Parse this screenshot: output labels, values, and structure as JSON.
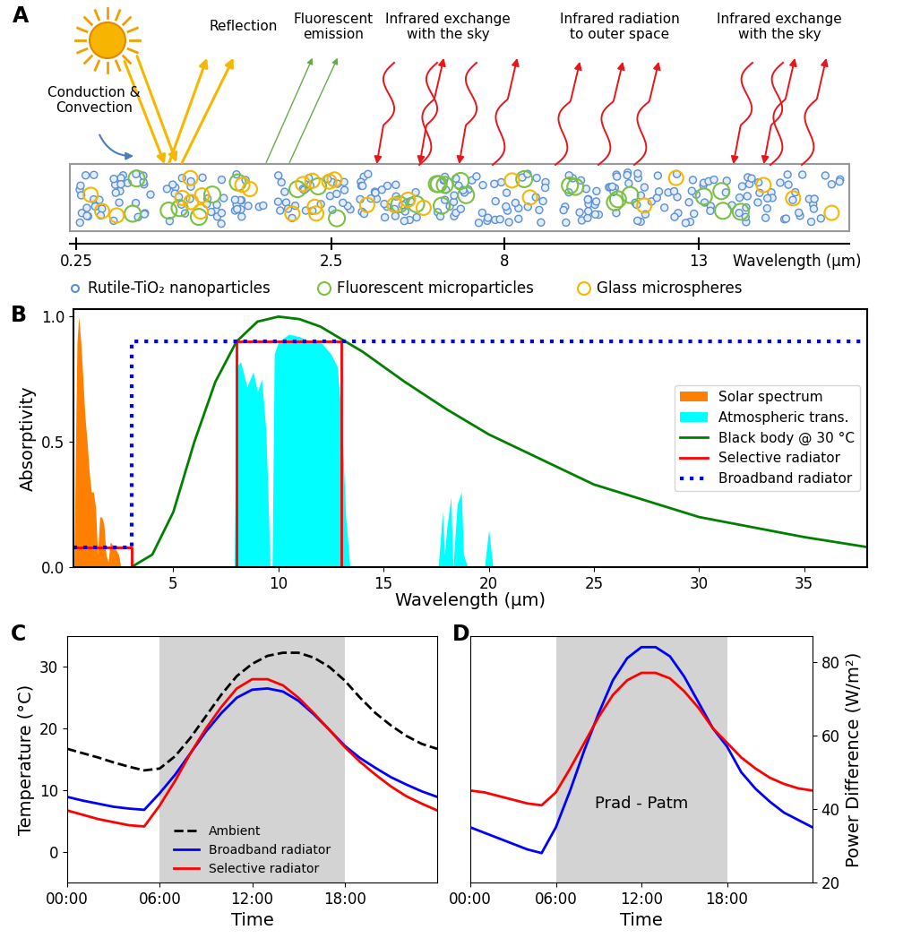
{
  "diagram": {
    "panel": "A",
    "labels": {
      "reflection": "Reflection",
      "fluorescent": "Fluorescent\nemission",
      "exchange_left": "Infrared exchange\nwith the sky",
      "outer_space": "Infrared radiation\nto outer space",
      "exchange_right": "Infrared exchange\nwith the sky",
      "conduction": "Conduction &\nConvection"
    },
    "axis": {
      "ticks": [
        "0.25",
        "2.5",
        "8",
        "13"
      ],
      "label": "Wavelength (µm)"
    },
    "key_items": [
      {
        "label": "Rutile-TiO₂ nanoparticles",
        "color": "#5b8fd6"
      },
      {
        "label": "Fluorescent microparticles",
        "color": "#7ac143"
      },
      {
        "label": "Glass microspheres",
        "color": "#f5b800"
      }
    ]
  },
  "chart_data": [
    {
      "panel": "B",
      "type": "line",
      "xlabel": "Wavelength (μm)",
      "ylabel": "Absorptivity",
      "xlim": [
        0.25,
        38
      ],
      "ylim": [
        0,
        1.03
      ],
      "xticks": [
        5,
        10,
        15,
        20,
        25,
        30,
        35
      ],
      "yticks": [
        {
          "value": 0,
          "label": "0.0"
        },
        {
          "value": 0.5,
          "label": "0.5"
        },
        {
          "value": 1.0,
          "label": "1.0"
        }
      ],
      "legend": "center right",
      "series": [
        {
          "name": "Solar spectrum",
          "type": "area",
          "color": "#ff8000",
          "x": [
            0.28,
            0.35,
            0.42,
            0.5,
            0.6,
            0.7,
            0.8,
            0.9,
            1.0,
            1.1,
            1.2,
            1.3,
            1.4,
            1.5,
            1.6,
            1.7,
            1.8,
            1.9,
            2.0,
            2.2,
            2.4,
            2.5
          ],
          "values": [
            0.0,
            0.5,
            0.9,
            1.0,
            0.9,
            0.75,
            0.6,
            0.5,
            0.38,
            0.3,
            0.3,
            0.24,
            0.05,
            0.2,
            0.2,
            0.17,
            0.05,
            0.02,
            0.1,
            0.08,
            0.05,
            0.0
          ]
        },
        {
          "name": "Atmospheric trans.",
          "type": "area",
          "color": "#00ffff",
          "x": [
            7.9,
            8.0,
            8.2,
            8.5,
            8.8,
            9.0,
            9.2,
            9.4,
            9.5,
            9.6,
            9.7,
            9.8,
            10.0,
            10.5,
            11.0,
            11.5,
            12.0,
            12.5,
            12.8,
            13.0,
            13.2,
            13.4,
            17.6,
            17.8,
            17.9,
            18.0,
            18.2,
            18.3,
            18.5,
            18.7,
            18.8,
            19.0,
            19.8,
            20.0,
            20.2
          ],
          "values": [
            0.0,
            0.8,
            0.82,
            0.72,
            0.78,
            0.7,
            0.75,
            0.55,
            0.3,
            0.0,
            0.0,
            0.85,
            0.9,
            0.93,
            0.92,
            0.9,
            0.9,
            0.85,
            0.8,
            0.6,
            0.2,
            0.0,
            0.0,
            0.22,
            0.05,
            0.15,
            0.28,
            0.0,
            0.25,
            0.3,
            0.05,
            0.0,
            0.0,
            0.15,
            0.0
          ]
        },
        {
          "name": "Black body @ 30 °C",
          "type": "line",
          "color": "#008000",
          "line_style": "solid",
          "x": [
            3,
            4,
            5,
            6,
            7,
            8,
            9,
            10,
            11,
            12,
            14,
            16,
            18,
            20,
            25,
            30,
            35,
            38
          ],
          "values": [
            0.0,
            0.05,
            0.22,
            0.5,
            0.74,
            0.9,
            0.98,
            1.0,
            0.99,
            0.96,
            0.86,
            0.74,
            0.63,
            0.53,
            0.33,
            0.2,
            0.12,
            0.08
          ]
        },
        {
          "name": "Selective radiator",
          "type": "line",
          "color": "#ff0000",
          "line_style": "solid",
          "x": [
            0.25,
            3,
            3,
            8,
            8,
            13,
            13,
            38
          ],
          "values": [
            0.08,
            0.08,
            0.0,
            0.0,
            0.9,
            0.9,
            0.0,
            0.0
          ]
        },
        {
          "name": "Broadband radiator",
          "type": "line",
          "color": "#0000ff",
          "line_style": "dotted",
          "x": [
            0.25,
            3,
            3,
            38
          ],
          "values": [
            0.08,
            0.08,
            0.9,
            0.9
          ]
        }
      ]
    },
    {
      "panel": "C",
      "type": "line",
      "xlabel": "Time",
      "ylabel": "Temperature (°C)",
      "x": [
        0,
        1,
        2,
        3,
        4,
        5,
        6,
        7,
        8,
        9,
        10,
        11,
        12,
        13,
        14,
        15,
        16,
        17,
        18,
        19,
        20,
        21,
        22,
        23,
        24
      ],
      "xlim": [
        0,
        24
      ],
      "xticks": [
        {
          "value": 0,
          "label": "00:00"
        },
        {
          "value": 6,
          "label": "06:00"
        },
        {
          "value": 12,
          "label": "12:00"
        },
        {
          "value": 18,
          "label": "18:00"
        }
      ],
      "ylim": [
        -5,
        35
      ],
      "yticks": [
        0,
        10,
        20,
        30
      ],
      "shaded_x": [
        6,
        18
      ],
      "legend": "lower center",
      "series": [
        {
          "name": "Ambient",
          "color": "#000000",
          "line_style": "dashed",
          "values": [
            16.7,
            16.0,
            15.3,
            14.5,
            13.8,
            13.2,
            13.5,
            15.5,
            18.5,
            22.0,
            25.5,
            28.5,
            30.5,
            31.8,
            32.3,
            32.3,
            31.5,
            30.0,
            27.8,
            25.0,
            22.5,
            20.5,
            18.8,
            17.5,
            16.7
          ]
        },
        {
          "name": "Broadband radiator",
          "color": "#0000ff",
          "line_style": "solid",
          "values": [
            8.9,
            8.3,
            7.8,
            7.3,
            7.0,
            6.8,
            9.5,
            12.5,
            16.0,
            19.5,
            22.5,
            25.0,
            26.3,
            26.5,
            26.0,
            24.5,
            22.3,
            19.8,
            17.2,
            15.2,
            13.6,
            12.1,
            10.9,
            9.8,
            8.9
          ]
        },
        {
          "name": "Selective radiator",
          "color": "#ff0000",
          "line_style": "solid",
          "values": [
            6.7,
            6.0,
            5.3,
            4.8,
            4.3,
            4.1,
            7.5,
            11.5,
            16.0,
            20.0,
            23.5,
            26.5,
            28.0,
            28.0,
            27.0,
            25.0,
            22.5,
            19.8,
            17.0,
            14.6,
            12.5,
            10.6,
            9.0,
            7.8,
            6.7
          ]
        }
      ]
    },
    {
      "panel": "D",
      "type": "line",
      "xlabel": "Time",
      "y2label": "Power Difference (W/m²)",
      "annotation": "Prad - Patm",
      "x": [
        0,
        1,
        2,
        3,
        4,
        5,
        6,
        7,
        8,
        9,
        10,
        11,
        12,
        13,
        14,
        15,
        16,
        17,
        18,
        19,
        20,
        21,
        22,
        23,
        24
      ],
      "xlim": [
        0,
        24
      ],
      "xticks": [
        {
          "value": 0,
          "label": "00:00"
        },
        {
          "value": 6,
          "label": "06:00"
        },
        {
          "value": 12,
          "label": "12:00"
        },
        {
          "value": 18,
          "label": "18:00"
        }
      ],
      "y2lim": [
        20,
        87
      ],
      "y2ticks": [
        20,
        40,
        60,
        80
      ],
      "shaded_x": [
        6,
        18
      ],
      "series": [
        {
          "color": "#0000ff",
          "line_style": "solid",
          "axis": "y2",
          "values": [
            35.0,
            33.5,
            32.0,
            30.5,
            29.0,
            28.0,
            35.0,
            45.0,
            56.0,
            66.0,
            75.0,
            81.0,
            84.0,
            84.0,
            81.5,
            76.0,
            69.0,
            62.0,
            57.0,
            50.0,
            45.5,
            42.0,
            39.0,
            37.0,
            35.0
          ]
        },
        {
          "color": "#ff0000",
          "line_style": "solid",
          "axis": "y2",
          "values": [
            45.0,
            44.5,
            43.5,
            42.5,
            41.5,
            41.0,
            44.5,
            51.0,
            58.0,
            65.0,
            71.0,
            75.0,
            77.0,
            77.0,
            75.5,
            72.0,
            67.5,
            62.0,
            58.0,
            54.0,
            51.0,
            48.5,
            46.8,
            45.6,
            45.0
          ]
        }
      ]
    }
  ]
}
